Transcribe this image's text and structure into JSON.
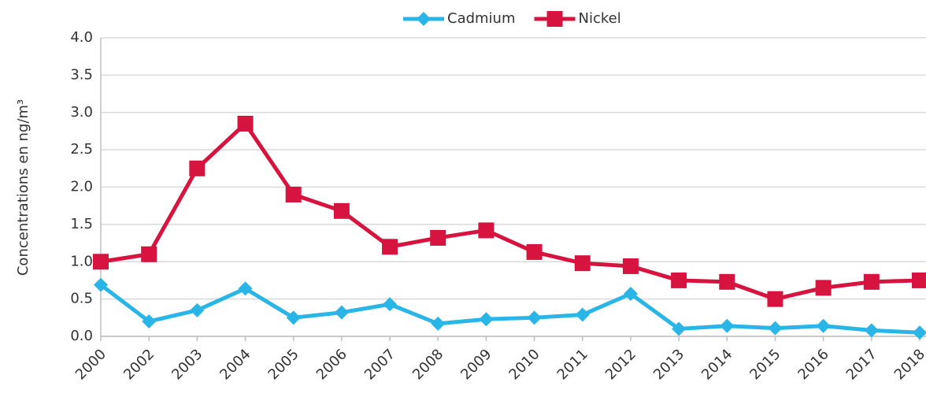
{
  "chart_data": {
    "type": "line",
    "y_label": "Concentrations en ng/m³",
    "categories": [
      "2000",
      "2002",
      "2003",
      "2004",
      "2005",
      "2006",
      "2007",
      "2008",
      "2009",
      "2010",
      "2011",
      "2012",
      "2013",
      "2014",
      "2015",
      "2016",
      "2017",
      "2018"
    ],
    "series": [
      {
        "name": "Cadmium",
        "color": "#29b6e6",
        "marker": "diamond",
        "values": [
          0.69,
          0.2,
          0.35,
          0.64,
          0.25,
          0.32,
          0.43,
          0.17,
          0.23,
          0.25,
          0.29,
          0.57,
          0.1,
          0.14,
          0.11,
          0.14,
          0.08,
          0.05
        ]
      },
      {
        "name": "Nickel",
        "color": "#d6143f",
        "marker": "square",
        "values": [
          1.0,
          1.1,
          2.25,
          2.85,
          1.9,
          1.68,
          1.2,
          1.32,
          1.42,
          1.13,
          0.98,
          0.94,
          0.75,
          0.73,
          0.5,
          0.65,
          0.73,
          0.75
        ]
      }
    ],
    "ylim": [
      0,
      4
    ],
    "yticks": [
      {
        "value": 0,
        "label": "0.0"
      },
      0.5,
      {
        "value": 1,
        "label": "1.0"
      },
      1.5,
      {
        "value": 2,
        "label": "2.0"
      },
      2.5,
      {
        "value": 3,
        "label": "3.0"
      },
      3.5,
      {
        "value": 4,
        "label": "4.0"
      }
    ],
    "grid": true,
    "legend": "top"
  }
}
